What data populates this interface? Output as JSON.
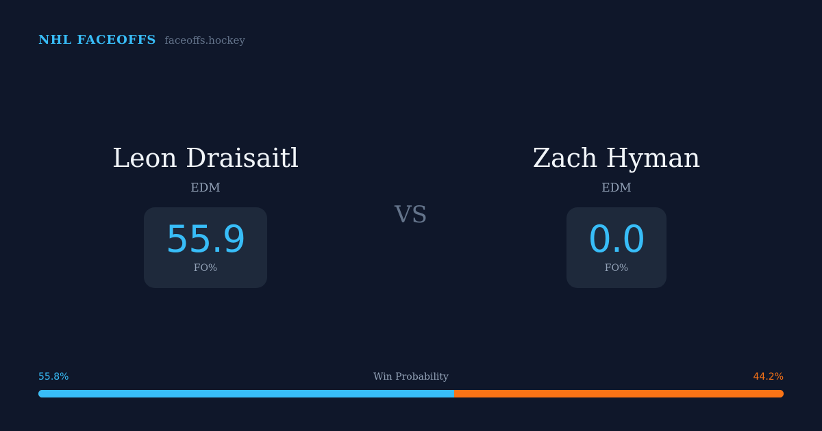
{
  "header": {
    "title": "NHL FACEOFFS",
    "site": "faceoffs.hockey"
  },
  "players": [
    {
      "name": "Leon Draisaitl",
      "team": "EDM",
      "fo_pct": "55.9",
      "fo_label": "FO%"
    },
    {
      "name": "Zach Hyman",
      "team": "EDM",
      "fo_pct": "0.0",
      "fo_label": "FO%"
    }
  ],
  "vs_label": "VS",
  "win_probability": {
    "label": "Win Probability",
    "left": "55.8%",
    "right": "44.2%",
    "left_value": 55.8,
    "right_value": 44.2
  },
  "colors": {
    "background": "#0f172a",
    "card": "#1e293b",
    "accent": "#38bdf8",
    "opponent": "#f97316",
    "muted": "#94a3b8"
  }
}
